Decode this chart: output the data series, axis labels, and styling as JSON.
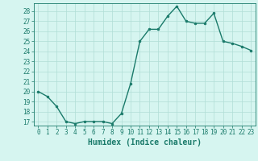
{
  "x": [
    0,
    1,
    2,
    3,
    4,
    5,
    6,
    7,
    8,
    9,
    10,
    11,
    12,
    13,
    14,
    15,
    16,
    17,
    18,
    19,
    20,
    21,
    22,
    23
  ],
  "y": [
    20.0,
    19.5,
    18.5,
    17.0,
    16.8,
    17.0,
    17.0,
    17.0,
    16.8,
    17.8,
    20.8,
    25.0,
    26.2,
    26.2,
    27.5,
    28.5,
    27.0,
    26.8,
    26.8,
    27.8,
    25.0,
    24.8,
    24.5,
    24.1
  ],
  "line_color": "#1a7a6a",
  "marker": "o",
  "marker_size": 2,
  "bg_color": "#d6f5f0",
  "grid_color": "#b0ddd6",
  "xlabel": "Humidex (Indice chaleur)",
  "ylim_min": 16.6,
  "ylim_max": 28.8,
  "xlim_min": -0.5,
  "xlim_max": 23.5,
  "yticks": [
    17,
    18,
    19,
    20,
    21,
    22,
    23,
    24,
    25,
    26,
    27,
    28
  ],
  "xticks": [
    0,
    1,
    2,
    3,
    4,
    5,
    6,
    7,
    8,
    9,
    10,
    11,
    12,
    13,
    14,
    15,
    16,
    17,
    18,
    19,
    20,
    21,
    22,
    23
  ],
  "tick_label_fontsize": 5.5,
  "xlabel_fontsize": 7,
  "tick_color": "#1a7a6a",
  "axis_color": "#1a7a6a",
  "linewidth": 1.0
}
